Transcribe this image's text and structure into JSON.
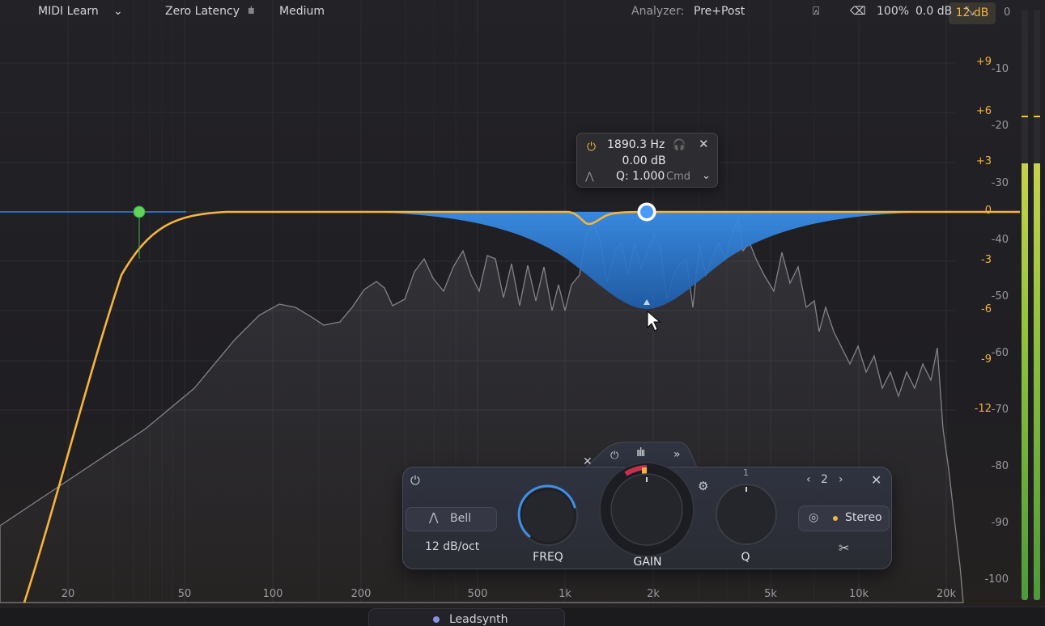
{
  "range_badge": "12 dB",
  "meter_top_label": "0",
  "gain_scale": [
    "+9",
    "+6",
    "+3",
    "0",
    "-3",
    "-6",
    "-9",
    "-12"
  ],
  "db_scale": [
    "-10",
    "-20",
    "-30",
    "-40",
    "-50",
    "-60",
    "-70",
    "-80",
    "-90",
    "-100"
  ],
  "freq_axis": [
    "20",
    "50",
    "100",
    "200",
    "500",
    "1k",
    "2k",
    "5k",
    "10k",
    "20k"
  ],
  "tooltip": {
    "frequency": "1890.3 Hz",
    "gain": "0.00 dB",
    "q": "Q: 1.000",
    "modifier": "Cmd"
  },
  "band_panel": {
    "shape": "Bell",
    "slope": "12 dB/oct",
    "freq_label": "FREQ",
    "gain_label": "GAIN",
    "q_label": "Q",
    "q_top_marker": "1",
    "band_number": "2",
    "stereo_mode": "Stereo"
  },
  "bottom_bar": {
    "midi_learn": "MIDI Learn",
    "latency": "Zero Latency",
    "quality": "Medium",
    "instance": "Leadsynth",
    "analyzer_label": "Analyzer:",
    "analyzer_value": "Pre+Post",
    "zoom": "100%",
    "output_gain": "0.0 dB"
  },
  "meters": {
    "left_level": 0.74,
    "right_level": 0.74
  },
  "colors": {
    "eq_curve": "#f5b43c",
    "band_fill": "#2f7fd6",
    "selected_node": "#4a9bf5",
    "lowcut_node": "#5fd35a",
    "accent_orange": "#f5b43c"
  }
}
